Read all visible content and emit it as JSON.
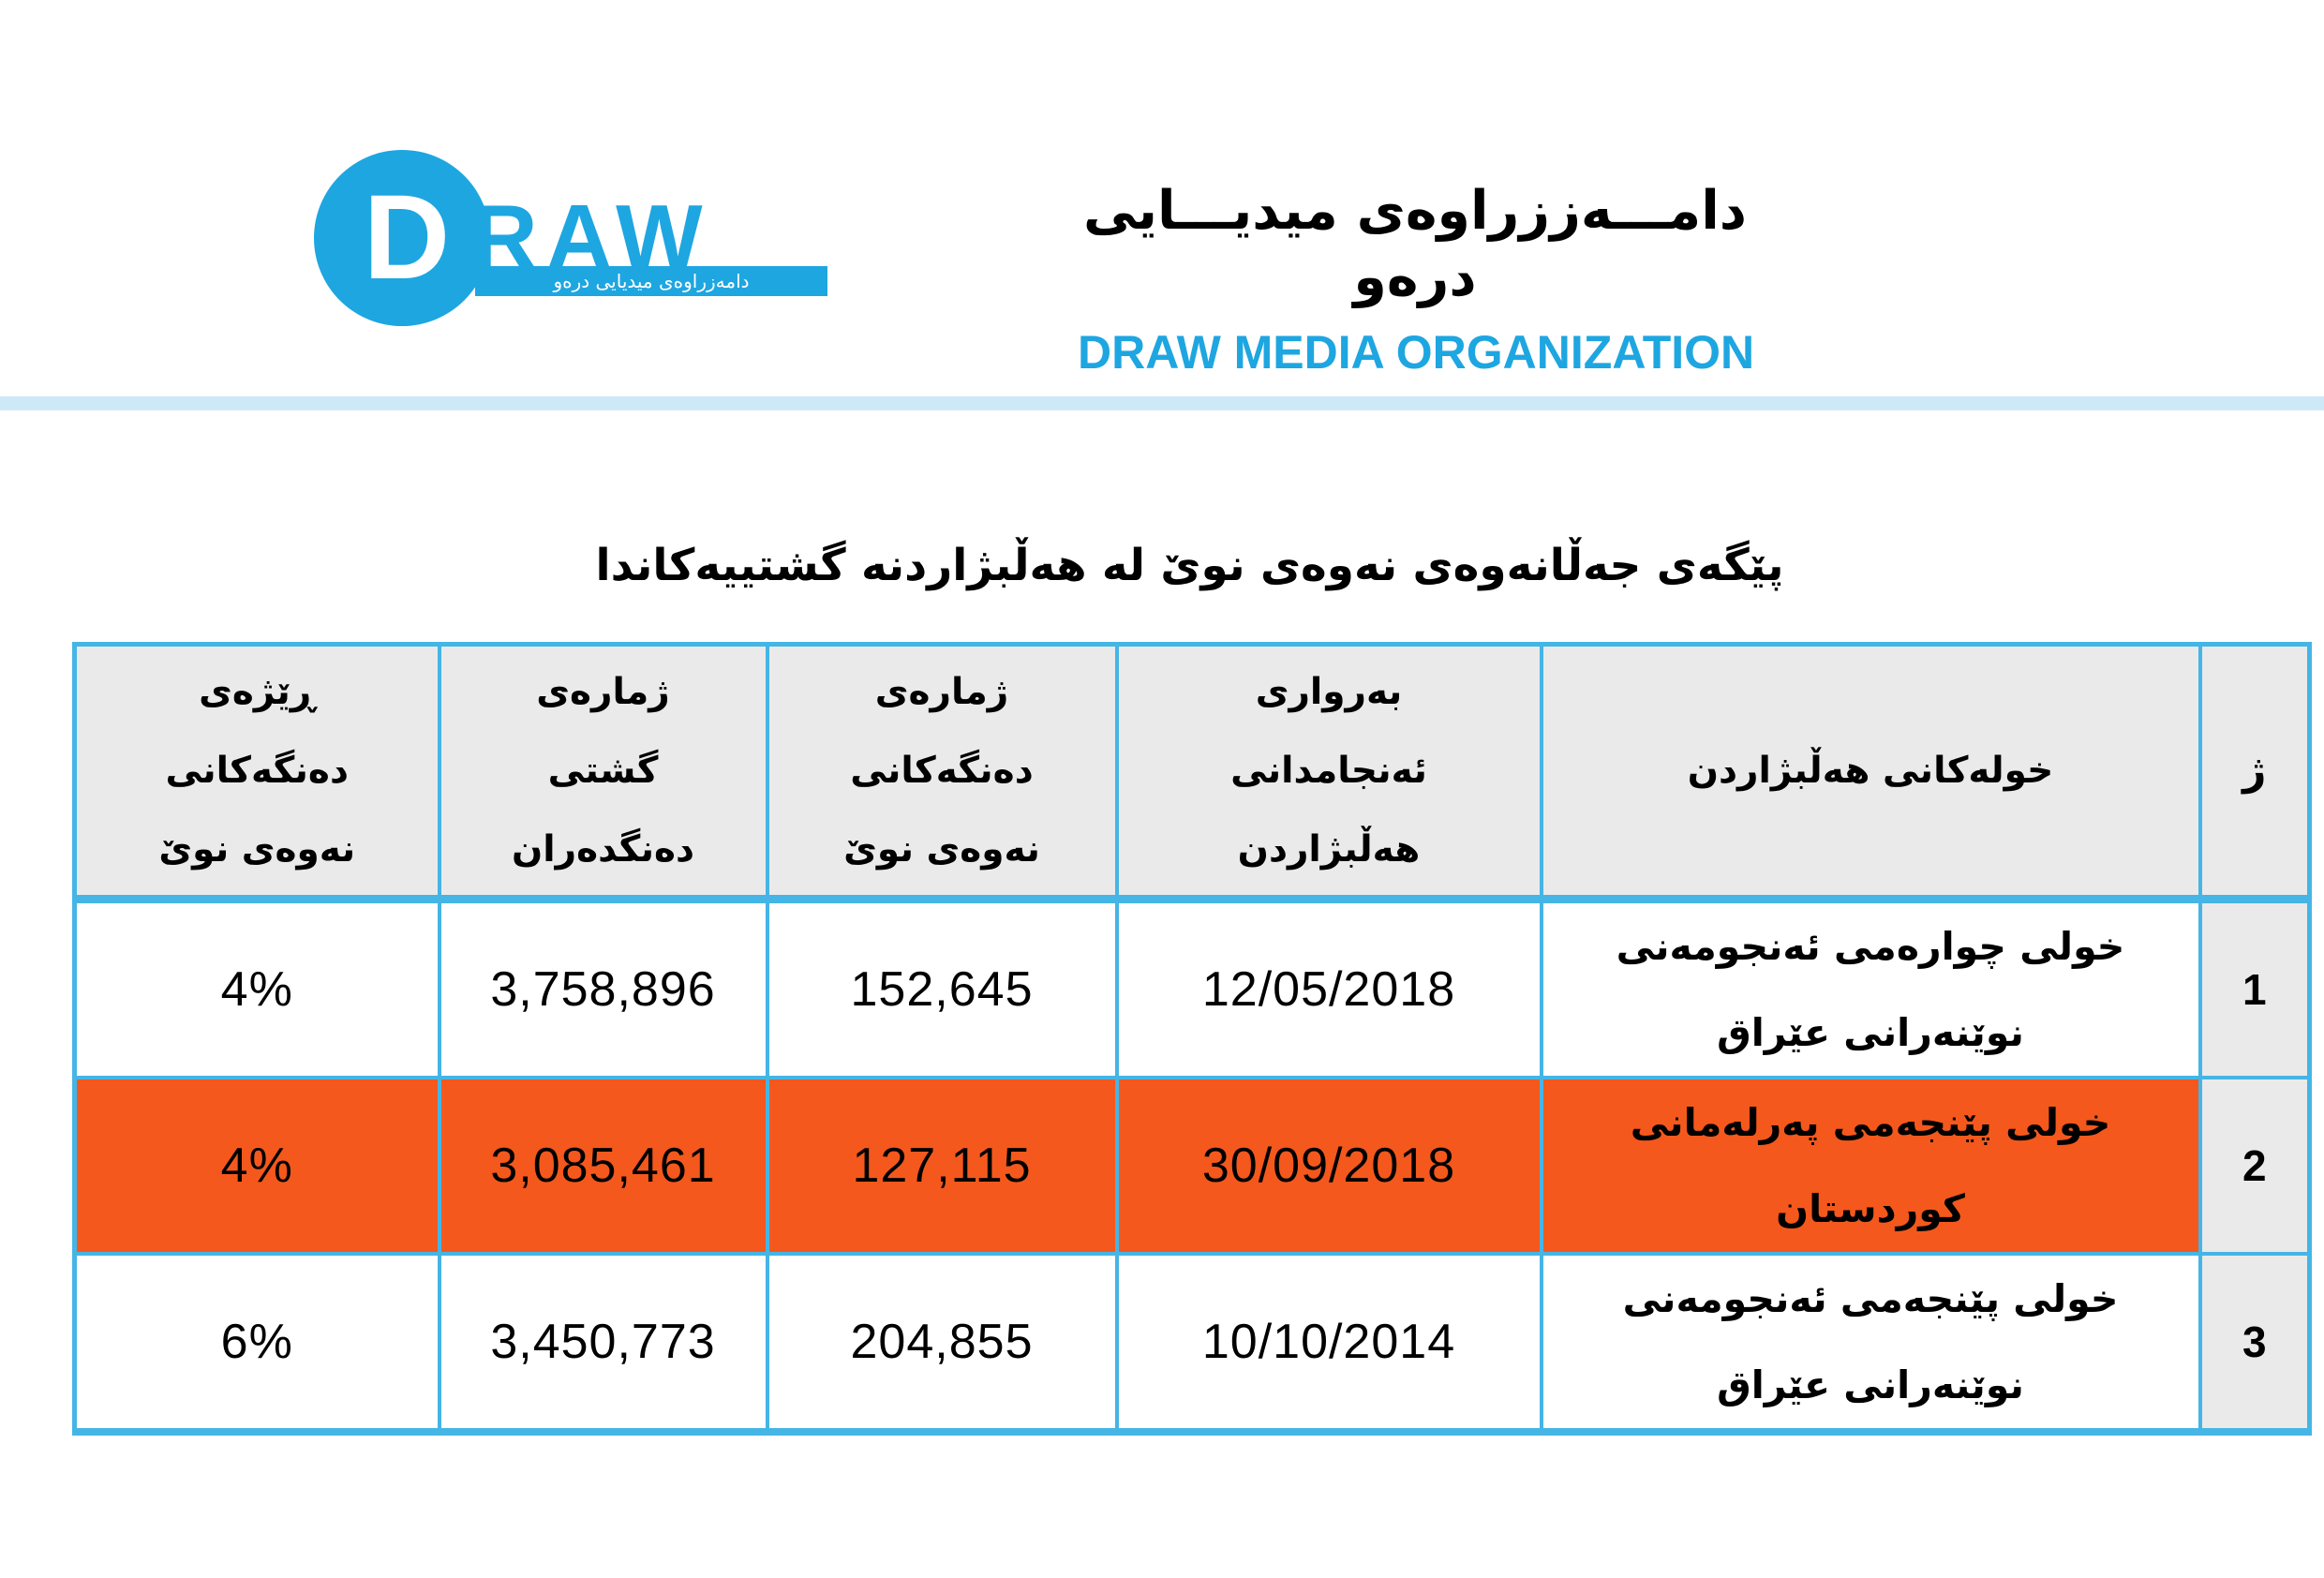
{
  "logo": {
    "letter_d": "D",
    "letters_raw": "RAW",
    "tagline": "دامەزراوەی میدیایی درەو"
  },
  "header": {
    "org_name_kurdish": "دامـــەززراوەی میدیـــایی درەو",
    "org_name_english": "DRAW MEDIA ORGANIZATION"
  },
  "title": "پێگەی جەڵانەوەی نەوەی نوێ لە هەڵبژاردنە گشتییەکاندا",
  "table": {
    "columns": [
      {
        "key": "no",
        "label_lines": [
          "ژ"
        ]
      },
      {
        "key": "round",
        "label_lines": [
          "خولەکانی هەڵبژاردن"
        ]
      },
      {
        "key": "date",
        "label_lines": [
          "بەرواری",
          "ئەنجامدانی",
          "هەڵبژاردن"
        ]
      },
      {
        "key": "new_gen_votes",
        "label_lines": [
          "ژمارەی",
          "دەنگەکانی",
          "نەوەی نوێ"
        ]
      },
      {
        "key": "total_voters",
        "label_lines": [
          "ژمارەی",
          "گشتی",
          "دەنگدەران"
        ]
      },
      {
        "key": "percentage",
        "label_lines": [
          "ڕێژەی",
          "دەنگەکانی",
          "نەوەی نوێ"
        ]
      }
    ],
    "rows": [
      {
        "no": "1",
        "round_lines": [
          "خولی چوارەمی ئەنجومەنی",
          "نوێنەرانی عێراق"
        ],
        "date": "12/05/2018",
        "new_gen_votes": "152,645",
        "total_voters": "3,758,896",
        "percentage": "4%",
        "highlighted": false
      },
      {
        "no": "2",
        "round_lines": [
          "خولی پێنجەمی پەرلەمانی",
          "کوردستان"
        ],
        "date": "30/09/2018",
        "new_gen_votes": "127,115",
        "total_voters": "3,085,461",
        "percentage": "4%",
        "highlighted": true
      },
      {
        "no": "3",
        "round_lines": [
          "خولی پێنجەمی ئەنجومەنی",
          "نوێنەرانی عێراق"
        ],
        "date": "10/10/2014",
        "new_gen_votes": "204,855",
        "total_voters": "3,450,773",
        "percentage": "6%",
        "highlighted": false
      }
    ]
  },
  "colors": {
    "brand": "#1ea6e1",
    "table_border": "#45b5e5",
    "header_bg": "#eaeaea",
    "row_highlight": "#f4581c",
    "divider_band": "#cde9f8"
  }
}
